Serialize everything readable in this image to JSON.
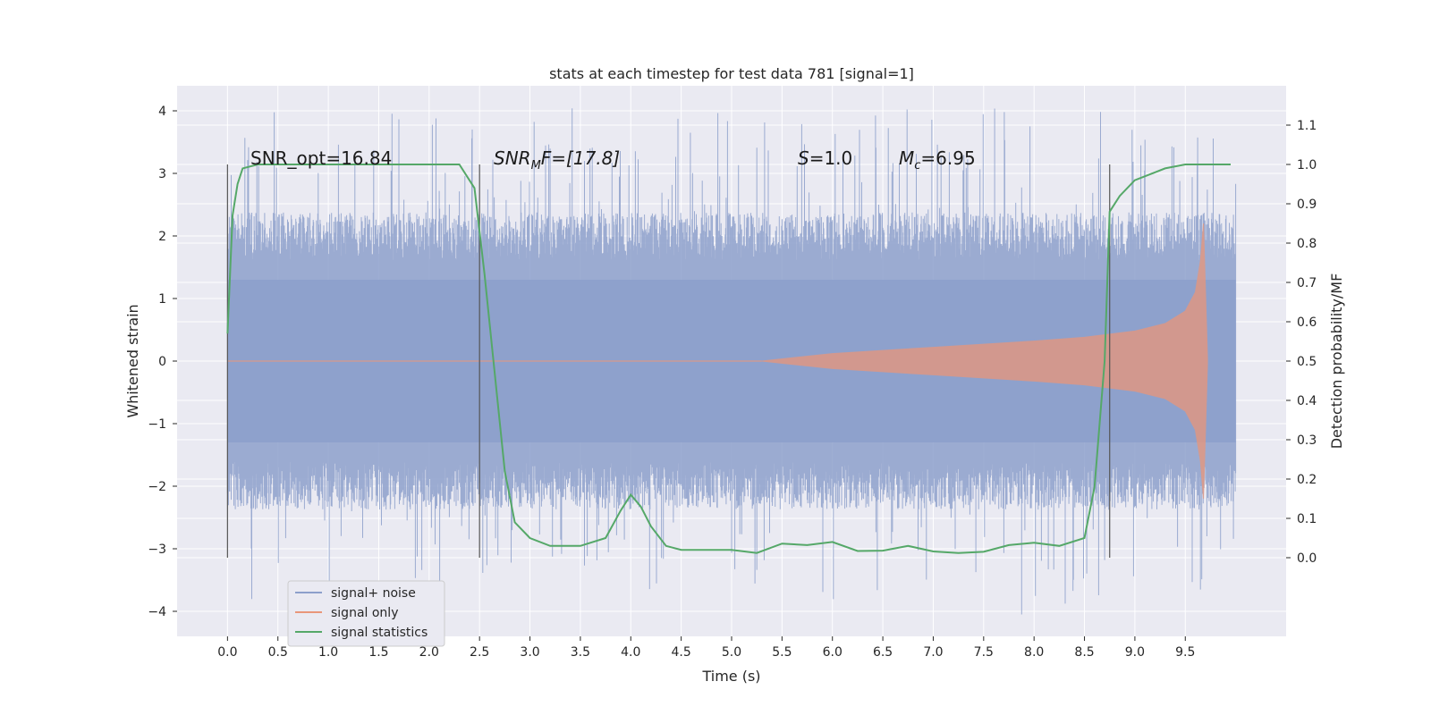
{
  "chart_data": {
    "type": "line",
    "title": "stats at each timestep for test data 781 [signal=1]",
    "xlabel": "Time (s)",
    "ylabel_left": "Whitened strain",
    "ylabel_right": "Detection probability/MF",
    "xlim": [
      -0.5,
      10.5
    ],
    "ylim_left": [
      -4.4,
      4.4
    ],
    "ylim_right": [
      -0.2,
      1.2
    ],
    "xticks": [
      "0.0",
      "0.5",
      "1.0",
      "1.5",
      "2.0",
      "2.5",
      "3.0",
      "3.5",
      "4.0",
      "4.5",
      "5.0",
      "5.5",
      "6.0",
      "6.5",
      "7.0",
      "7.5",
      "8.0",
      "8.5",
      "9.0",
      "9.5"
    ],
    "yticks_left": [
      "4",
      "3",
      "2",
      "1",
      "0",
      "−1",
      "−2",
      "−3",
      "−4"
    ],
    "yticks_right": [
      "1.1",
      "1.0",
      "0.9",
      "0.8",
      "0.7",
      "0.6",
      "0.5",
      "0.4",
      "0.3",
      "0.2",
      "0.1",
      "0.0"
    ],
    "grid": true,
    "legend_position": "lower-left",
    "annotations": {
      "snr_opt": "SNR_opt=16.84",
      "snr_mf_italic": "SNR",
      "snr_mf_sub": "M",
      "snr_mf_rest": "F=[17.8]",
      "s_italic": "S",
      "s_rest": "=1.0",
      "mc_italic": "M",
      "mc_sub": "c",
      "mc_rest": "=6.95"
    },
    "vertical_markers_x": [
      0.0,
      2.5,
      8.75
    ],
    "series": [
      {
        "name": "signal+ noise",
        "color": "#8da0cb",
        "axis": "left",
        "x_range": [
          0.0,
          10.0
        ],
        "envelope_abs_typical": 1.9,
        "peak_min": -4.05,
        "peak_max": 4.05
      },
      {
        "name": "signal only",
        "color": "#e9967a",
        "axis": "left",
        "x": [
          5.3,
          6.0,
          7.0,
          8.0,
          8.5,
          9.0,
          9.3,
          9.5,
          9.6,
          9.65,
          9.68,
          9.72
        ],
        "amplitude": [
          0.0,
          0.12,
          0.22,
          0.32,
          0.38,
          0.48,
          0.6,
          0.8,
          1.1,
          1.6,
          2.2,
          0.05
        ]
      },
      {
        "name": "signal statistics",
        "color": "#55a868",
        "axis": "right",
        "x": [
          0.0,
          0.05,
          0.1,
          0.15,
          0.3,
          0.5,
          1.0,
          1.5,
          2.0,
          2.3,
          2.45,
          2.55,
          2.65,
          2.75,
          2.85,
          3.0,
          3.2,
          3.5,
          3.75,
          3.9,
          4.0,
          4.1,
          4.2,
          4.35,
          4.5,
          5.0,
          5.25,
          5.5,
          5.75,
          6.0,
          6.25,
          6.5,
          6.75,
          7.0,
          7.25,
          7.5,
          7.75,
          8.0,
          8.25,
          8.5,
          8.6,
          8.7,
          8.75,
          8.85,
          9.0,
          9.2,
          9.3,
          9.5,
          9.7,
          9.95
        ],
        "y": [
          0.57,
          0.87,
          0.95,
          0.99,
          1.0,
          1.0,
          1.0,
          1.0,
          1.0,
          1.0,
          0.94,
          0.72,
          0.47,
          0.22,
          0.09,
          0.05,
          0.03,
          0.03,
          0.05,
          0.12,
          0.16,
          0.13,
          0.08,
          0.03,
          0.02,
          0.02,
          0.012,
          0.036,
          0.032,
          0.04,
          0.017,
          0.018,
          0.03,
          0.016,
          0.012,
          0.015,
          0.032,
          0.038,
          0.03,
          0.05,
          0.18,
          0.5,
          0.88,
          0.92,
          0.96,
          0.98,
          0.99,
          1.0,
          1.0,
          1.0
        ]
      }
    ]
  }
}
